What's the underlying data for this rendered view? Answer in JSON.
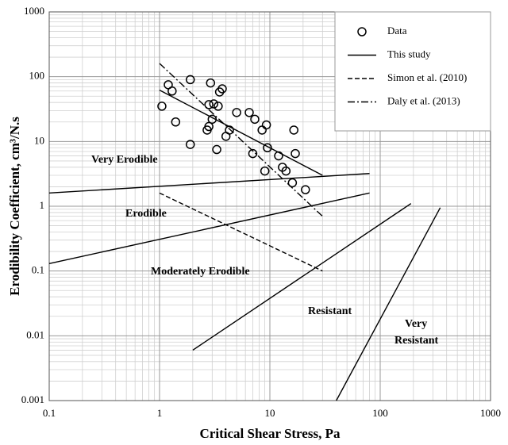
{
  "chart_data": {
    "type": "scatter",
    "xlabel": "Critical Shear Stress, Pa",
    "ylabel": "Erodibility Coefficient, cm³/N.s",
    "xscale": "log",
    "yscale": "log",
    "xlim": [
      0.1,
      1000
    ],
    "ylim": [
      0.001,
      1000
    ],
    "xticks": [
      0.1,
      1,
      10,
      100,
      1000
    ],
    "yticks": [
      0.001,
      0.01,
      0.1,
      1,
      10,
      100,
      1000
    ],
    "grid": true,
    "legend": "upper right",
    "series": [
      {
        "name": "Data",
        "type": "scatter",
        "color": "#000000",
        "x": [
          1.05,
          1.2,
          1.3,
          1.4,
          1.9,
          1.9,
          2.7,
          2.8,
          2.8,
          2.9,
          3,
          3.1,
          3.3,
          3.4,
          3.5,
          3.7,
          4,
          4.3,
          5,
          6.5,
          7,
          7.3,
          8.5,
          9,
          9.3,
          9.5,
          12,
          13,
          14,
          16,
          16.5,
          17,
          21
        ],
        "values": [
          35,
          75,
          60,
          20,
          9,
          90,
          15,
          17,
          37,
          80,
          22,
          38,
          7.5,
          35,
          58,
          65,
          12,
          15,
          28,
          28,
          6.5,
          22,
          15,
          3.5,
          18,
          8,
          6,
          4,
          3.5,
          2.3,
          15,
          6.5,
          1.8
        ]
      },
      {
        "name": "This study",
        "type": "line",
        "dash": "solid",
        "color": "#000000",
        "x": [
          1,
          30
        ],
        "values": [
          62,
          3
        ]
      },
      {
        "name": "Simon et al. (2010)",
        "type": "line",
        "dash": "dashed",
        "color": "#000000",
        "x": [
          1,
          30
        ],
        "values": [
          1.6,
          0.1
        ]
      },
      {
        "name": "Daly et al. (2013)",
        "type": "line",
        "dash": "dashdot",
        "color": "#000000",
        "x": [
          1,
          30
        ],
        "values": [
          160,
          0.7
        ]
      }
    ],
    "reference_lines": [
      {
        "x": [
          0.1,
          80
        ],
        "values": [
          1.6,
          3.2
        ]
      },
      {
        "x": [
          0.1,
          80
        ],
        "values": [
          0.13,
          1.6
        ]
      },
      {
        "x": [
          2,
          190
        ],
        "values": [
          0.006,
          1.1
        ]
      },
      {
        "x": [
          40,
          350
        ],
        "values": [
          0.001,
          0.95
        ]
      }
    ],
    "annotations": [
      "Very Erodible",
      "Erodible",
      "Moderately Erodible",
      "Resistant",
      "Very",
      "Resistant"
    ]
  }
}
